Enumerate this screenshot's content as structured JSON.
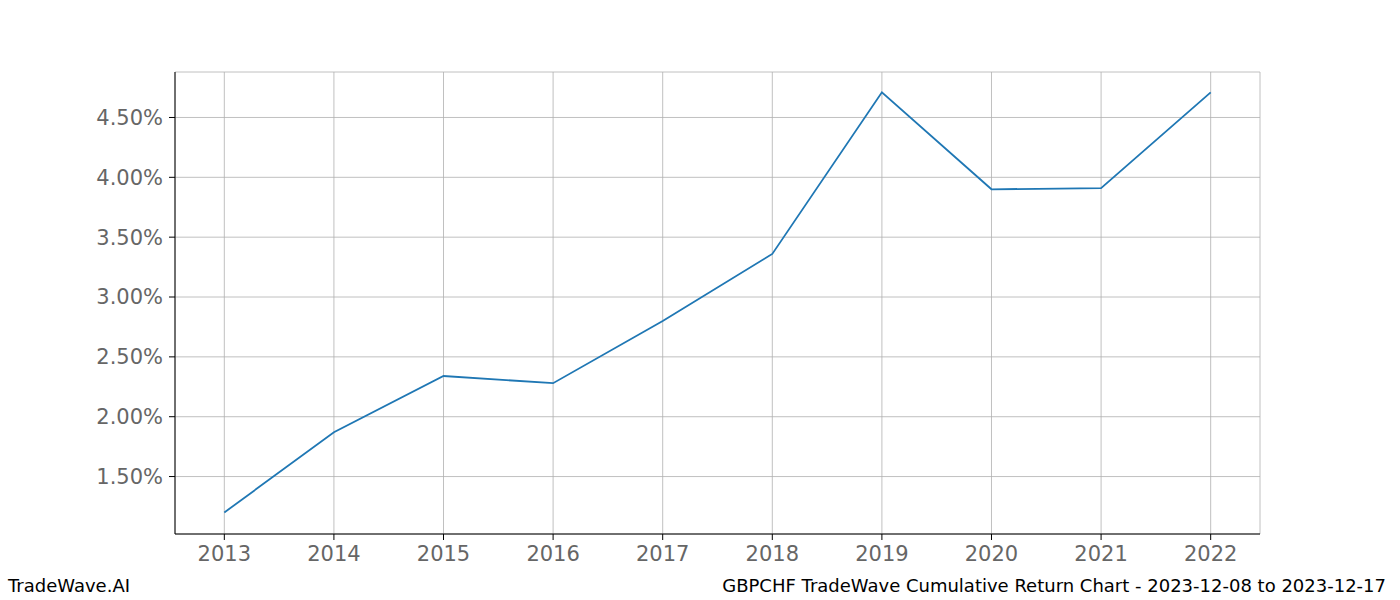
{
  "chart_data": {
    "type": "line",
    "x": [
      2013,
      2014,
      2015,
      2016,
      2017,
      2018,
      2019,
      2020,
      2021,
      2022
    ],
    "values": [
      1.2,
      1.87,
      2.34,
      2.28,
      2.8,
      3.36,
      4.71,
      3.9,
      3.91,
      4.71
    ],
    "color": "#1f77b4",
    "xlim": [
      2012.55,
      2022.45
    ],
    "xticks": [
      2013,
      2014,
      2015,
      2016,
      2017,
      2018,
      2019,
      2020,
      2021,
      2022
    ],
    "ylim": [
      1.02,
      4.88
    ],
    "yticks": [
      {
        "value": 1.5,
        "label": "1.50%"
      },
      {
        "value": 2,
        "label": "2.00%"
      },
      {
        "value": 2.5,
        "label": "2.50%"
      },
      {
        "value": 3,
        "label": "3.00%"
      },
      {
        "value": 3.5,
        "label": "3.50%"
      },
      {
        "value": 4,
        "label": "4.00%"
      },
      {
        "value": 4.5,
        "label": "4.50%"
      }
    ],
    "grid": true
  },
  "footer": {
    "left": "TradeWave.AI",
    "right": "GBPCHF TradeWave Cumulative Return Chart - 2023-12-08 to 2023-12-17"
  }
}
